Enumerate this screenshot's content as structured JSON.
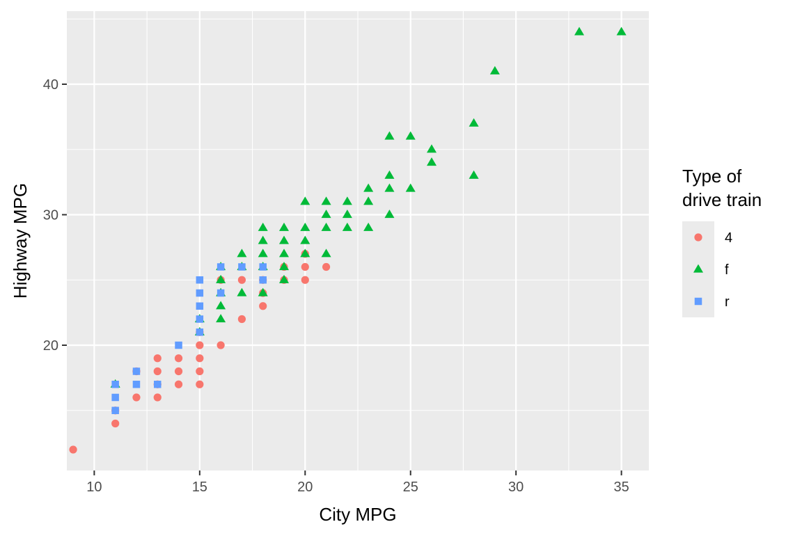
{
  "chart_data": {
    "type": "scatter",
    "title": "",
    "xlabel": "City MPG",
    "ylabel": "Highway MPG",
    "xlim": [
      8.7,
      36.3
    ],
    "ylim": [
      10.4,
      45.6
    ],
    "x_ticks": [
      10,
      15,
      20,
      25,
      30,
      35
    ],
    "y_ticks": [
      20,
      30,
      40
    ],
    "grid": true,
    "legend": {
      "title_lines": [
        "Type of",
        "drive train"
      ],
      "position": "right"
    },
    "series": [
      {
        "name": "4",
        "color": "#F8766D",
        "marker": "circle",
        "points": [
          [
            9,
            12
          ],
          [
            11,
            14
          ],
          [
            11,
            15
          ],
          [
            12,
            16
          ],
          [
            12,
            18
          ],
          [
            13,
            16
          ],
          [
            13,
            17
          ],
          [
            13,
            18
          ],
          [
            13,
            19
          ],
          [
            14,
            17
          ],
          [
            14,
            18
          ],
          [
            14,
            19
          ],
          [
            15,
            17
          ],
          [
            15,
            18
          ],
          [
            15,
            19
          ],
          [
            15,
            20
          ],
          [
            15,
            21
          ],
          [
            16,
            20
          ],
          [
            16,
            25
          ],
          [
            17,
            22
          ],
          [
            17,
            25
          ],
          [
            18,
            23
          ],
          [
            18,
            24
          ],
          [
            18,
            25
          ],
          [
            19,
            25
          ],
          [
            19,
            26
          ],
          [
            20,
            25
          ],
          [
            20,
            26
          ],
          [
            20,
            27
          ],
          [
            21,
            26
          ]
        ]
      },
      {
        "name": "f",
        "color": "#00BA38",
        "marker": "triangle",
        "points": [
          [
            11,
            17
          ],
          [
            15,
            21
          ],
          [
            15,
            22
          ],
          [
            16,
            22
          ],
          [
            16,
            23
          ],
          [
            16,
            24
          ],
          [
            16,
            25
          ],
          [
            16,
            26
          ],
          [
            17,
            24
          ],
          [
            17,
            26
          ],
          [
            17,
            27
          ],
          [
            18,
            24
          ],
          [
            18,
            26
          ],
          [
            18,
            27
          ],
          [
            18,
            28
          ],
          [
            18,
            29
          ],
          [
            19,
            25
          ],
          [
            19,
            26
          ],
          [
            19,
            27
          ],
          [
            19,
            28
          ],
          [
            19,
            29
          ],
          [
            20,
            27
          ],
          [
            20,
            28
          ],
          [
            20,
            29
          ],
          [
            20,
            31
          ],
          [
            21,
            27
          ],
          [
            21,
            29
          ],
          [
            21,
            30
          ],
          [
            21,
            31
          ],
          [
            22,
            29
          ],
          [
            22,
            30
          ],
          [
            22,
            31
          ],
          [
            23,
            29
          ],
          [
            23,
            31
          ],
          [
            23,
            32
          ],
          [
            24,
            30
          ],
          [
            24,
            32
          ],
          [
            24,
            33
          ],
          [
            24,
            36
          ],
          [
            25,
            32
          ],
          [
            25,
            36
          ],
          [
            26,
            34
          ],
          [
            26,
            35
          ],
          [
            28,
            33
          ],
          [
            28,
            37
          ],
          [
            29,
            41
          ],
          [
            33,
            44
          ],
          [
            35,
            44
          ]
        ]
      },
      {
        "name": "r",
        "color": "#619CFF",
        "marker": "square",
        "points": [
          [
            11,
            15
          ],
          [
            11,
            16
          ],
          [
            11,
            17
          ],
          [
            12,
            17
          ],
          [
            12,
            18
          ],
          [
            13,
            17
          ],
          [
            14,
            20
          ],
          [
            15,
            21
          ],
          [
            15,
            22
          ],
          [
            15,
            23
          ],
          [
            15,
            24
          ],
          [
            15,
            25
          ],
          [
            16,
            24
          ],
          [
            16,
            26
          ],
          [
            17,
            26
          ],
          [
            18,
            25
          ],
          [
            18,
            26
          ]
        ]
      }
    ]
  }
}
